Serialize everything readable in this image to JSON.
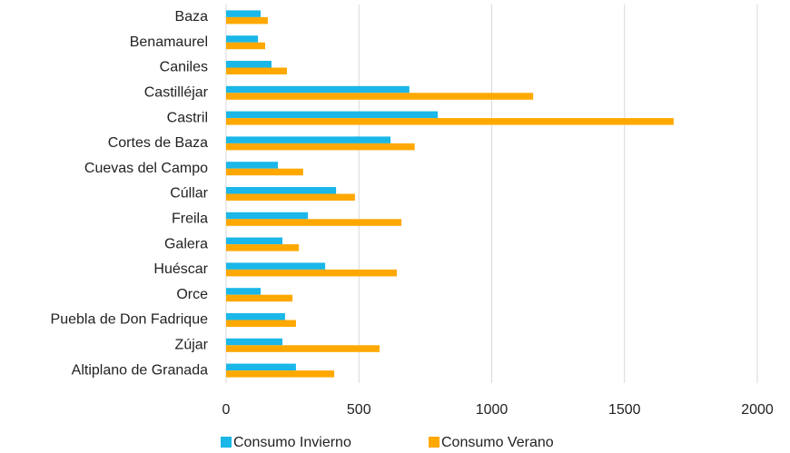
{
  "chart_data": {
    "type": "hbar",
    "categories": [
      "Baza",
      "Benamaurel",
      "Caniles",
      "Castilléjar",
      "Castril",
      "Cortes de Baza",
      "Cuevas del Campo",
      "Cúllar",
      "Freila",
      "Galera",
      "Huéscar",
      "Orce",
      "Puebla de Don Fadrique",
      "Zújar",
      "Altiplano de Granada"
    ],
    "series": [
      {
        "name": "Consumo Invierno",
        "color": "#1ab7e8",
        "values": [
          130,
          120,
          171,
          690,
          797,
          619,
          195,
          414,
          308,
          212,
          373,
          130,
          222,
          212,
          263
        ]
      },
      {
        "name": "Consumo Verano",
        "color": "#ffa800",
        "values": [
          157,
          147,
          229,
          1156,
          1685,
          710,
          290,
          485,
          660,
          274,
          643,
          250,
          263,
          578,
          407
        ]
      }
    ],
    "xlim": [
      0,
      2000
    ],
    "xticks": [
      0,
      500,
      1000,
      1500,
      2000
    ],
    "grid": true,
    "legend": "bottom"
  }
}
